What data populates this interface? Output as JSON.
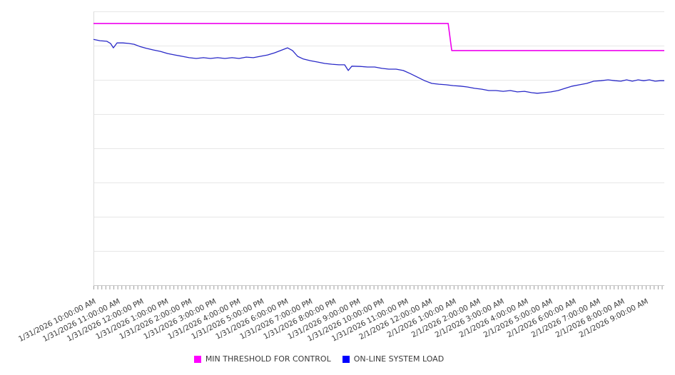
{
  "page": {
    "background": "#ffffff"
  },
  "legend": {
    "items": [
      {
        "label": "MIN THRESHOLD FOR CONTROL",
        "color": "#ff00ff"
      },
      {
        "label": "ON-LINE SYSTEM LOAD",
        "color": "#0000ff"
      }
    ]
  },
  "chart_data": {
    "type": "line",
    "title": "",
    "xlabel": "",
    "ylabel": "",
    "grid": "horizontal-only",
    "legend_position": "bottom-center",
    "x_axis": {
      "tick_interval": "1 hour",
      "minor_tick_interval_minutes": 10,
      "total_hours": 23.77,
      "tick_labels": [
        "1/31/2026 10:00:00 AM",
        "1/31/2026 11:00:00 AM",
        "1/31/2026 12:00:00 PM",
        "1/31/2026 1:00:00 PM",
        "1/31/2026 2:00:00 PM",
        "1/31/2026 3:00:00 PM",
        "1/31/2026 4:00:00 PM",
        "1/31/2026 5:00:00 PM",
        "1/31/2026 6:00:00 PM",
        "1/31/2026 7:00:00 PM",
        "1/31/2026 8:00:00 PM",
        "1/31/2026 9:00:00 PM",
        "1/31/2026 10:00:00 PM",
        "1/31/2026 11:00:00 PM",
        "2/1/2026 12:00:00 AM",
        "2/1/2026 1:00:00 AM",
        "2/1/2026 2:00:00 AM",
        "2/1/2026 3:00:00 AM",
        "2/1/2026 4:00:00 AM",
        "2/1/2026 5:00:00 AM",
        "2/1/2026 6:00:00 AM",
        "2/1/2026 7:00:00 AM",
        "2/1/2026 8:00:00 AM",
        "2/1/2026 9:00:00 AM"
      ]
    },
    "y_axis": {
      "min": 0,
      "max": 100,
      "gridline_step": 12.5,
      "labels_visible": false
    },
    "series": [
      {
        "name": "MIN THRESHOLD FOR CONTROL",
        "color": "#ee00ee",
        "stroke_width": 1.6,
        "points_hours_value": [
          [
            0,
            95.6
          ],
          [
            14.77,
            95.6
          ],
          [
            14.92,
            85.7
          ],
          [
            23.77,
            85.7
          ]
        ]
      },
      {
        "name": "ON-LINE SYSTEM LOAD",
        "color": "#2929c8",
        "stroke_width": 1.3,
        "points_hours_value": [
          [
            0,
            89.8
          ],
          [
            0.27,
            89.3
          ],
          [
            0.56,
            89.1
          ],
          [
            0.71,
            88.3
          ],
          [
            0.83,
            86.7
          ],
          [
            0.98,
            88.5
          ],
          [
            1.22,
            88.5
          ],
          [
            1.46,
            88.3
          ],
          [
            1.69,
            88.0
          ],
          [
            1.93,
            87.2
          ],
          [
            2.2,
            86.5
          ],
          [
            2.5,
            85.9
          ],
          [
            2.79,
            85.4
          ],
          [
            3.09,
            84.6
          ],
          [
            3.39,
            84.1
          ],
          [
            3.69,
            83.6
          ],
          [
            3.98,
            83.1
          ],
          [
            4.28,
            82.8
          ],
          [
            4.58,
            83.1
          ],
          [
            4.87,
            82.8
          ],
          [
            5.17,
            83.1
          ],
          [
            5.47,
            82.8
          ],
          [
            5.77,
            83.1
          ],
          [
            6.06,
            82.8
          ],
          [
            6.36,
            83.3
          ],
          [
            6.66,
            83.1
          ],
          [
            6.95,
            83.6
          ],
          [
            7.25,
            84.1
          ],
          [
            7.55,
            84.9
          ],
          [
            7.85,
            85.9
          ],
          [
            8.08,
            86.7
          ],
          [
            8.29,
            85.7
          ],
          [
            8.5,
            83.6
          ],
          [
            8.74,
            82.6
          ],
          [
            9.03,
            82.0
          ],
          [
            9.33,
            81.5
          ],
          [
            9.63,
            81.0
          ],
          [
            9.93,
            80.7
          ],
          [
            10.22,
            80.5
          ],
          [
            10.46,
            80.5
          ],
          [
            10.61,
            78.4
          ],
          [
            10.76,
            80.0
          ],
          [
            11.11,
            79.9
          ],
          [
            11.41,
            79.7
          ],
          [
            11.71,
            79.7
          ],
          [
            12.01,
            79.2
          ],
          [
            12.3,
            78.9
          ],
          [
            12.6,
            78.9
          ],
          [
            12.9,
            78.4
          ],
          [
            13.19,
            77.3
          ],
          [
            13.49,
            76.0
          ],
          [
            13.79,
            74.7
          ],
          [
            14.09,
            73.7
          ],
          [
            14.38,
            73.4
          ],
          [
            14.68,
            73.2
          ],
          [
            14.98,
            72.9
          ],
          [
            15.28,
            72.7
          ],
          [
            15.57,
            72.4
          ],
          [
            15.87,
            71.9
          ],
          [
            16.17,
            71.6
          ],
          [
            16.46,
            71.1
          ],
          [
            16.76,
            71.1
          ],
          [
            17.06,
            70.8
          ],
          [
            17.36,
            71.1
          ],
          [
            17.65,
            70.6
          ],
          [
            17.95,
            70.8
          ],
          [
            18.25,
            70.3
          ],
          [
            18.48,
            70.1
          ],
          [
            18.75,
            70.3
          ],
          [
            19.05,
            70.6
          ],
          [
            19.35,
            71.1
          ],
          [
            19.64,
            71.9
          ],
          [
            19.94,
            72.7
          ],
          [
            20.24,
            73.2
          ],
          [
            20.54,
            73.7
          ],
          [
            20.83,
            74.5
          ],
          [
            21.13,
            74.7
          ],
          [
            21.43,
            75.0
          ],
          [
            21.72,
            74.7
          ],
          [
            21.96,
            74.5
          ],
          [
            22.2,
            75.0
          ],
          [
            22.44,
            74.5
          ],
          [
            22.68,
            75.0
          ],
          [
            22.91,
            74.7
          ],
          [
            23.15,
            75.0
          ],
          [
            23.39,
            74.5
          ],
          [
            23.6,
            74.7
          ],
          [
            23.77,
            74.7
          ]
        ]
      }
    ],
    "style": {
      "gridline_color": "#e7e7e7",
      "left_border_color": "#dcdcdc",
      "axis_line_color": "#c9c9c9",
      "tick_color": "#9d9d9d",
      "label_color": "#3d3d3d"
    }
  }
}
